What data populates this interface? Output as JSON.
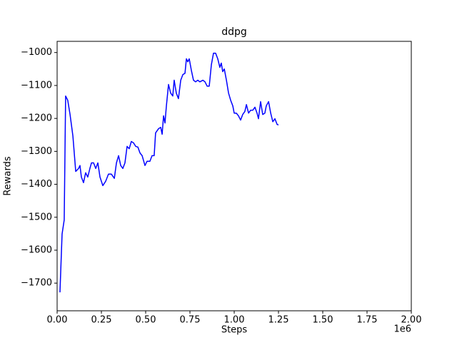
{
  "chart_data": {
    "type": "line",
    "title": "ddpg",
    "x_label": "Steps",
    "y_label": "Rewards",
    "x_offset_label": "1e6",
    "color": "#0000ff",
    "x": [
      16000,
      28000,
      40000,
      48000,
      60000,
      73000,
      89000,
      105000,
      121000,
      129000,
      137000,
      149000,
      161000,
      173000,
      185000,
      194000,
      206000,
      218000,
      230000,
      242000,
      258000,
      274000,
      290000,
      306000,
      323000,
      335000,
      347000,
      359000,
      371000,
      383000,
      395000,
      407000,
      419000,
      431000,
      444000,
      456000,
      468000,
      480000,
      496000,
      508000,
      524000,
      536000,
      548000,
      556000,
      573000,
      585000,
      593000,
      601000,
      609000,
      617000,
      629000,
      641000,
      653000,
      661000,
      673000,
      685000,
      698000,
      710000,
      722000,
      730000,
      738000,
      746000,
      758000,
      770000,
      782000,
      794000,
      806000,
      823000,
      835000,
      847000,
      859000,
      871000,
      883000,
      895000,
      907000,
      919000,
      927000,
      935000,
      944000,
      956000,
      968000,
      980000,
      992000,
      1000000,
      1012000,
      1024000,
      1036000,
      1048000,
      1060000,
      1069000,
      1081000,
      1093000,
      1105000,
      1117000,
      1129000,
      1137000,
      1149000,
      1161000,
      1173000,
      1181000,
      1194000,
      1206000,
      1218000,
      1230000,
      1242000,
      1250000
    ],
    "values": [
      -1728,
      -1551,
      -1508,
      -1132,
      -1145,
      -1188,
      -1253,
      -1361,
      -1352,
      -1343,
      -1378,
      -1395,
      -1365,
      -1378,
      -1352,
      -1335,
      -1335,
      -1352,
      -1335,
      -1378,
      -1404,
      -1391,
      -1369,
      -1369,
      -1382,
      -1335,
      -1313,
      -1343,
      -1352,
      -1335,
      -1285,
      -1292,
      -1270,
      -1274,
      -1285,
      -1287,
      -1305,
      -1313,
      -1343,
      -1330,
      -1330,
      -1313,
      -1313,
      -1244,
      -1231,
      -1227,
      -1248,
      -1192,
      -1214,
      -1162,
      -1097,
      -1123,
      -1132,
      -1084,
      -1123,
      -1140,
      -1084,
      -1067,
      -1063,
      -1019,
      -1028,
      -1019,
      -1054,
      -1084,
      -1089,
      -1084,
      -1089,
      -1084,
      -1089,
      -1102,
      -1102,
      -1037,
      -1002,
      -1002,
      -1019,
      -1045,
      -1032,
      -1058,
      -1050,
      -1084,
      -1123,
      -1145,
      -1162,
      -1184,
      -1184,
      -1192,
      -1205,
      -1188,
      -1179,
      -1158,
      -1184,
      -1175,
      -1175,
      -1166,
      -1184,
      -1201,
      -1149,
      -1188,
      -1184,
      -1162,
      -1149,
      -1184,
      -1210,
      -1201,
      -1218,
      -1220
    ],
    "xlim": [
      0,
      2000000
    ],
    "xticks": [
      {
        "value": 0,
        "label": "0.00"
      },
      {
        "value": 250000,
        "label": "0.25"
      },
      {
        "value": 500000,
        "label": "0.50"
      },
      {
        "value": 750000,
        "label": "0.75"
      },
      {
        "value": 1000000,
        "label": "1.00"
      },
      {
        "value": 1250000,
        "label": "1.25"
      },
      {
        "value": 1500000,
        "label": "1.50"
      },
      {
        "value": 1750000,
        "label": "1.75"
      },
      {
        "value": 2000000,
        "label": "2.00"
      }
    ],
    "ylim": [
      -1784,
      -966
    ],
    "yticks": [
      {
        "value": -1700,
        "label": "−1700"
      },
      {
        "value": -1600,
        "label": "−1600"
      },
      {
        "value": -1500,
        "label": "−1500"
      },
      {
        "value": -1400,
        "label": "−1400"
      },
      {
        "value": -1300,
        "label": "−1300"
      },
      {
        "value": -1200,
        "label": "−1200"
      },
      {
        "value": -1100,
        "label": "−1100"
      },
      {
        "value": -1000,
        "label": "−1000"
      }
    ]
  }
}
